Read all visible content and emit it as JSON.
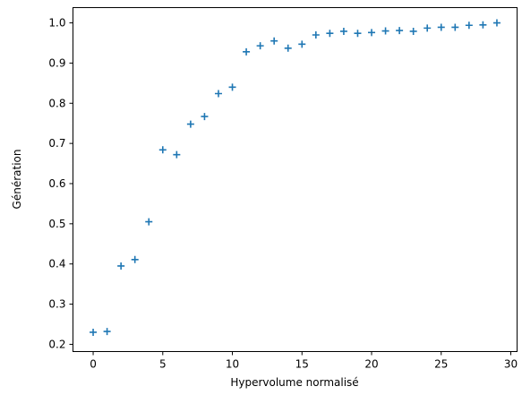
{
  "chart_data": {
    "type": "scatter",
    "marker": "plus",
    "marker_color": "#1f77b4",
    "grid": false,
    "legend": "none",
    "xlabel": "Hypervolume normalisé",
    "ylabel": "Génération",
    "xlim": [
      -1.45,
      30.45
    ],
    "ylim": [
      0.182,
      1.038
    ],
    "xticks": [
      0,
      5,
      10,
      15,
      20,
      25,
      30
    ],
    "xtick_labels": [
      "0",
      "5",
      "10",
      "15",
      "20",
      "25",
      "30"
    ],
    "yticks": [
      0.2,
      0.3,
      0.4,
      0.5,
      0.6,
      0.7,
      0.8,
      0.9,
      1.0
    ],
    "ytick_labels": [
      "0.2",
      "0.3",
      "0.4",
      "0.5",
      "0.6",
      "0.7",
      "0.8",
      "0.9",
      "1.0"
    ],
    "x": [
      0,
      1,
      2,
      3,
      4,
      5,
      6,
      7,
      8,
      9,
      10,
      11,
      12,
      13,
      14,
      15,
      16,
      17,
      18,
      19,
      20,
      21,
      22,
      23,
      24,
      25,
      26,
      27,
      28,
      29
    ],
    "y": [
      0.23,
      0.232,
      0.395,
      0.411,
      0.505,
      0.684,
      0.672,
      0.748,
      0.767,
      0.824,
      0.84,
      0.928,
      0.943,
      0.955,
      0.937,
      0.947,
      0.97,
      0.974,
      0.979,
      0.974,
      0.976,
      0.98,
      0.981,
      0.979,
      0.987,
      0.989,
      0.989,
      0.994,
      0.995,
      1.0
    ]
  }
}
